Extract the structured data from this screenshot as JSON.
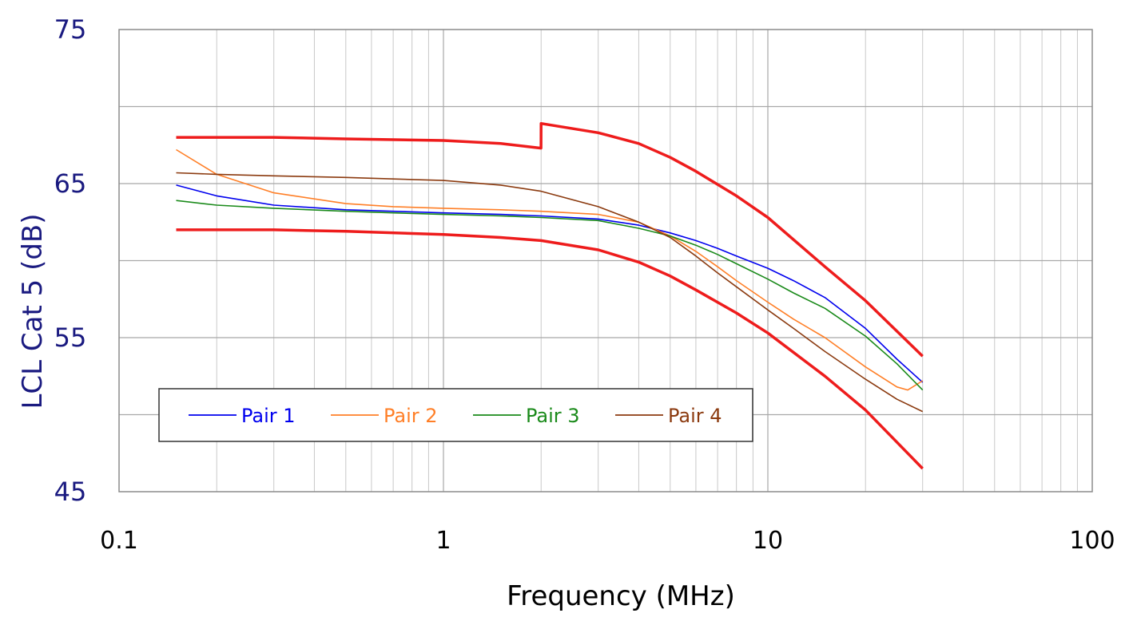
{
  "chart_data": {
    "type": "line",
    "title": "",
    "xlabel": "Frequency (MHz)",
    "ylabel": "LCL Cat 5 (dB)",
    "xscale": "log",
    "xlim": [
      0.1,
      100
    ],
    "ylim": [
      45,
      75
    ],
    "x_ticks": [
      "0.1",
      "1",
      "10",
      "100"
    ],
    "y_ticks": [
      "45",
      "55",
      "65",
      "75"
    ],
    "grid": true,
    "legend_position": "bottom-left",
    "series": [
      {
        "name": "Pair 1",
        "color": "#0000ee",
        "x": [
          0.15,
          0.2,
          0.3,
          0.5,
          0.7,
          1,
          1.5,
          2,
          3,
          4,
          5,
          6,
          7,
          8,
          10,
          12,
          15,
          20,
          25,
          30
        ],
        "y": [
          64.9,
          64.2,
          63.6,
          63.3,
          63.2,
          63.1,
          63.0,
          62.9,
          62.7,
          62.3,
          61.8,
          61.3,
          60.8,
          60.3,
          59.5,
          58.7,
          57.6,
          55.6,
          53.6,
          52.1
        ]
      },
      {
        "name": "Pair 2",
        "color": "#ff7f27",
        "x": [
          0.15,
          0.2,
          0.3,
          0.5,
          0.7,
          1,
          1.5,
          2,
          3,
          4,
          5,
          6,
          7,
          8,
          10,
          12,
          15,
          20,
          25,
          27,
          30
        ],
        "y": [
          67.2,
          65.6,
          64.4,
          63.7,
          63.5,
          63.4,
          63.3,
          63.2,
          63.0,
          62.5,
          61.6,
          60.6,
          59.6,
          58.7,
          57.3,
          56.2,
          55.0,
          53.1,
          51.8,
          51.6,
          52.2
        ]
      },
      {
        "name": "Pair 3",
        "color": "#1a8a1a",
        "x": [
          0.15,
          0.2,
          0.3,
          0.5,
          0.7,
          1,
          1.5,
          2,
          3,
          4,
          5,
          6,
          7,
          8,
          10,
          12,
          15,
          20,
          25,
          30
        ],
        "y": [
          63.9,
          63.6,
          63.4,
          63.2,
          63.1,
          63.0,
          62.9,
          62.8,
          62.6,
          62.1,
          61.6,
          61.0,
          60.4,
          59.8,
          58.8,
          57.9,
          56.9,
          55.1,
          53.3,
          51.6
        ]
      },
      {
        "name": "Pair 4",
        "color": "#8b3a0f",
        "x": [
          0.15,
          0.2,
          0.3,
          0.5,
          0.7,
          1,
          1.5,
          2,
          3,
          4,
          5,
          6,
          7,
          8,
          10,
          12,
          15,
          20,
          25,
          30
        ],
        "y": [
          65.7,
          65.6,
          65.5,
          65.4,
          65.3,
          65.2,
          64.9,
          64.5,
          63.5,
          62.5,
          61.5,
          60.3,
          59.2,
          58.3,
          56.8,
          55.6,
          54.1,
          52.3,
          51.0,
          50.2
        ]
      },
      {
        "name": "",
        "color": "#ee1c1c",
        "x": [
          0.15,
          0.3,
          0.5,
          1,
          1.5,
          1.999,
          2.0,
          3,
          4,
          5,
          6,
          8,
          10,
          15,
          20,
          30
        ],
        "y": [
          68.0,
          68.0,
          67.9,
          67.8,
          67.6,
          67.3,
          68.9,
          68.3,
          67.6,
          66.7,
          65.8,
          64.2,
          62.8,
          59.6,
          57.4,
          53.8
        ]
      },
      {
        "name": "",
        "color": "#ee1c1c",
        "x": [
          0.15,
          0.3,
          0.5,
          1,
          1.5,
          2,
          3,
          4,
          5,
          6,
          8,
          10,
          15,
          20,
          30
        ],
        "y": [
          62.0,
          62.0,
          61.9,
          61.7,
          61.5,
          61.3,
          60.7,
          59.9,
          59.0,
          58.1,
          56.6,
          55.3,
          52.5,
          50.3,
          46.5
        ]
      }
    ]
  }
}
